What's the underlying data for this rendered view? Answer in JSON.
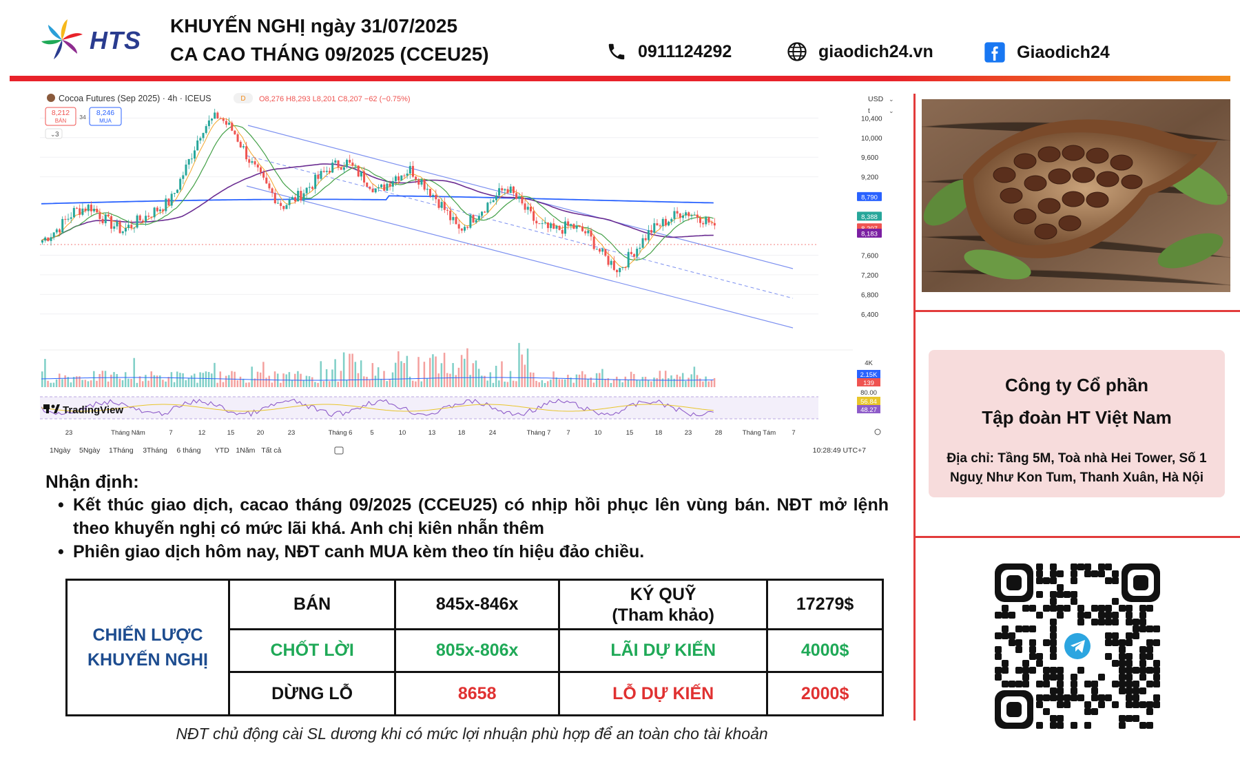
{
  "header": {
    "brand": "HTS",
    "title_line1": "KHUYẾN NGHỊ ngày 31/07/2025",
    "title_line2": "CA CAO THÁNG 09/2025 (CCEU25)",
    "phone": "0911124292",
    "website": "giaodich24.vn",
    "facebook": "Giaodich24"
  },
  "chart_meta": {
    "symbol_line": "Cocoa Futures (Sep 2025) · 4h · ICEUS",
    "ohlc_line": "O8,276 H8,293 L8,201 C8,207 −62 (−0.75%)",
    "sell_price": "8,212",
    "sell_label": "BÁN",
    "spread": "34",
    "buy_price": "8,246",
    "buy_label": "MUA",
    "indicator_count": "3",
    "currency": "USD",
    "scale_label": "t",
    "brand": "TradingView",
    "ranges": [
      "1Ngày",
      "5Ngày",
      "1Tháng",
      "3Tháng",
      "6 tháng",
      "YTD",
      "1Năm",
      "Tất cả"
    ],
    "clock": "10:28:49 UTC+7",
    "price_ticks": [
      "10,400",
      "10,000",
      "9,600",
      "9,200",
      "7,600",
      "7,200",
      "6,800",
      "6,400"
    ],
    "price_labels": [
      {
        "text": "8,790",
        "color": "#2962ff"
      },
      {
        "text": "8,388",
        "color": "#26a69a"
      },
      {
        "text": "8,207",
        "color": "#ef5350"
      },
      {
        "text": "8,183",
        "color": "#7b1fa2"
      }
    ],
    "volume_labels": [
      "4K",
      "2.15K",
      "139"
    ],
    "rsi_labels": [
      "80.00",
      "56.84",
      "48.27"
    ],
    "time_ticks": [
      "23",
      "Tháng Năm",
      "7",
      "12",
      "15",
      "20",
      "23",
      "Tháng 6",
      "5",
      "10",
      "13",
      "18",
      "24",
      "Tháng 7",
      "7",
      "10",
      "15",
      "18",
      "23",
      "28",
      "Tháng Tám",
      "7"
    ]
  },
  "chart_data": {
    "type": "candlestick",
    "title": "Cocoa Futures (Sep 2025) · 4h · ICEUS",
    "ylim": [
      6200,
      10700
    ],
    "x": [
      "23",
      "Tháng Năm",
      "7",
      "12",
      "15",
      "20",
      "23",
      "Tháng 6",
      "5",
      "10",
      "13",
      "18",
      "24",
      "Tháng 7",
      "7",
      "10",
      "15",
      "18",
      "23",
      "28"
    ],
    "close_path": [
      7900,
      8150,
      8500,
      8600,
      8300,
      8100,
      8300,
      8500,
      8700,
      9400,
      10200,
      10450,
      10100,
      9500,
      9000,
      8600,
      8800,
      9100,
      9400,
      9500,
      9200,
      8900,
      9200,
      9350,
      9000,
      8600,
      8100,
      8400,
      8700,
      9000,
      8600,
      8200,
      8100,
      8200,
      8050,
      7600,
      7300,
      7700,
      8100,
      8300,
      8500,
      8400,
      8207
    ]
  },
  "commentary": {
    "heading": "Nhận định:",
    "bullet1": "Kết thúc giao dịch, cacao tháng 09/2025 (CCEU25) có nhịp hồi phục lên vùng bán. NĐT mở lệnh theo khuyến nghị có mức lãi khá. Anh chị kiên nhẫn thêm",
    "bullet2": "Phiên giao dịch hôm nay, NĐT canh MUA kèm theo tín hiệu đảo chiều."
  },
  "strategy": {
    "label_line1": "CHIẾN LƯỢC",
    "label_line2": "KHUYẾN NGHỊ",
    "row1": {
      "action": "BÁN",
      "price": "845x-846x",
      "margin_label_1": "KÝ QUỸ",
      "margin_label_2": "(Tham khảo)",
      "margin_value": "17279$"
    },
    "row2": {
      "label": "CHỐT LỜI",
      "price": "805x-806x",
      "profit_label": "LÃI DỰ KIẾN",
      "profit_value": "4000$"
    },
    "row3": {
      "label": "DỪNG LỖ",
      "price": "8658",
      "loss_label": "LỖ DỰ KIẾN",
      "loss_value": "2000$"
    }
  },
  "note": "NĐT chủ động cài SL dương khi có mức lợi nhuận phù hợp để an toàn cho tài khoản",
  "company": {
    "name_line1": "Công ty Cổ phần",
    "name_line2": "Tập đoàn HT Việt Nam",
    "address": "Địa chỉ: Tầng 5M, Toà nhà Hei Tower, Số 1 Nguỵ Như Kon Tum, Thanh Xuân, Hà Nội"
  },
  "colors": {
    "accent_red": "#e8222a",
    "accent_orange": "#f28c1c",
    "brand_blue": "#2a3c8f",
    "profit_green": "#1fa957",
    "loss_red": "#e03131",
    "strategy_blue": "#1d4c8f"
  }
}
